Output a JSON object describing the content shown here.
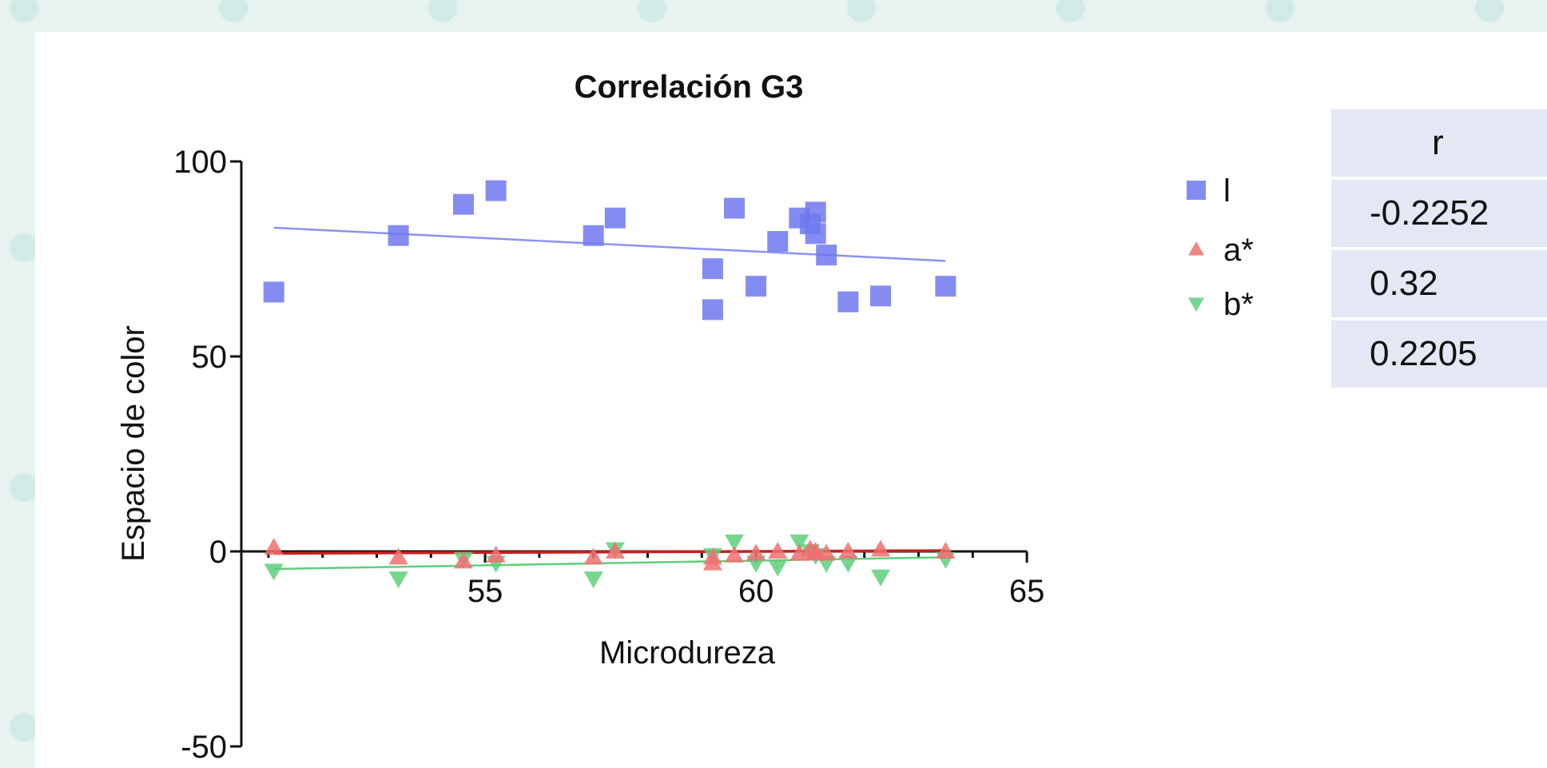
{
  "chart_data": {
    "type": "scatter",
    "title": "Correlación G3",
    "xlabel": "Microdureza",
    "ylabel": "Espacio de color",
    "xlim": [
      50.5,
      65
    ],
    "ylim": [
      -50,
      100
    ],
    "x_ticks": [
      "55",
      "60",
      "65"
    ],
    "y_ticks": [
      "100",
      "50",
      "0",
      "-50"
    ],
    "series": [
      {
        "name": "l",
        "marker": "square",
        "color": "#6f78ee",
        "points": [
          [
            51.1,
            66.5
          ],
          [
            53.4,
            81
          ],
          [
            54.6,
            89
          ],
          [
            55.2,
            92.5
          ],
          [
            57,
            81
          ],
          [
            57.4,
            85.5
          ],
          [
            59.2,
            72.5
          ],
          [
            59.2,
            62
          ],
          [
            59.6,
            88
          ],
          [
            60,
            68
          ],
          [
            60.4,
            79.5
          ],
          [
            60.8,
            85.5
          ],
          [
            61,
            84
          ],
          [
            61.1,
            81.5
          ],
          [
            61.1,
            87
          ],
          [
            61.3,
            76
          ],
          [
            61.7,
            64
          ],
          [
            62.3,
            65.5
          ],
          [
            63.5,
            68
          ]
        ],
        "trend": [
          [
            51.1,
            83
          ],
          [
            63.5,
            74.5
          ]
        ]
      },
      {
        "name": "a*",
        "marker": "triangle-up",
        "color": "#f07070",
        "points": [
          [
            51.1,
            1
          ],
          [
            53.4,
            -1.5
          ],
          [
            54.6,
            -2.5
          ],
          [
            55.2,
            -1
          ],
          [
            57,
            -1.5
          ],
          [
            57.4,
            0
          ],
          [
            59.2,
            -1.5
          ],
          [
            59.2,
            -3
          ],
          [
            59.6,
            -1
          ],
          [
            60,
            -0.5
          ],
          [
            60.4,
            0
          ],
          [
            60.8,
            -0.5
          ],
          [
            61,
            0.5
          ],
          [
            61.1,
            -0.5
          ],
          [
            61.1,
            0
          ],
          [
            61.3,
            -0.5
          ],
          [
            61.7,
            0
          ],
          [
            62.3,
            0.5
          ],
          [
            63.5,
            0
          ]
        ],
        "trend": [
          [
            51.1,
            -0.5
          ],
          [
            63.5,
            0.2
          ]
        ]
      },
      {
        "name": "b*",
        "marker": "triangle-down",
        "color": "#5ecf7c",
        "points": [
          [
            51.1,
            -5
          ],
          [
            53.4,
            -7
          ],
          [
            54.6,
            -2
          ],
          [
            55.2,
            -3
          ],
          [
            57,
            -7
          ],
          [
            57.4,
            0.5
          ],
          [
            59.2,
            -1
          ],
          [
            59.6,
            2.5
          ],
          [
            60,
            -3
          ],
          [
            60.4,
            -4
          ],
          [
            60.8,
            2.5
          ],
          [
            61,
            0
          ],
          [
            61.1,
            -1
          ],
          [
            61.3,
            -3
          ],
          [
            61.7,
            -3
          ],
          [
            62.3,
            -6.5
          ],
          [
            63.5,
            -2
          ]
        ],
        "trend": [
          [
            51.1,
            -4.5
          ],
          [
            63.5,
            -1.5
          ]
        ]
      }
    ],
    "legend_position": "right",
    "grid": false,
    "table": {
      "header": "r",
      "rows": [
        "-0.2252",
        "0.32",
        "0.2205"
      ]
    }
  }
}
